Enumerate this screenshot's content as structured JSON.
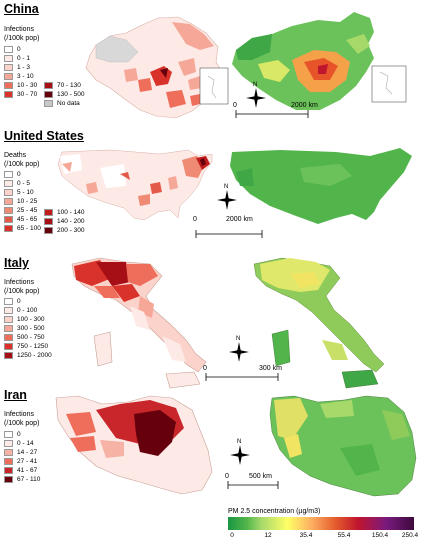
{
  "sections": {
    "china": {
      "title": "China",
      "legend_title": "Infections\n(/100k pop)",
      "legend_left": [
        {
          "label": "0",
          "color": "#ffffff"
        },
        {
          "label": "0 - 1",
          "color": "#fdeae6"
        },
        {
          "label": "1 - 3",
          "color": "#fbd3cb"
        },
        {
          "label": "3 - 10",
          "color": "#f6a898"
        },
        {
          "label": "10 - 30",
          "color": "#ef6e5b"
        },
        {
          "label": "30 - 70",
          "color": "#d8322a"
        }
      ],
      "legend_right": [
        {
          "label": "70 - 130",
          "color": "#a50f15"
        },
        {
          "label": "130 - 500",
          "color": "#67000d"
        },
        {
          "label": "No data",
          "color": "#c8c8c8"
        }
      ],
      "compass": "N",
      "scale_start": "0",
      "scale_end": "2000 km"
    },
    "us": {
      "title": "United States",
      "legend_title": "Deaths\n(/100k pop)",
      "legend_left": [
        {
          "label": "0",
          "color": "#ffffff"
        },
        {
          "label": "0 - 5",
          "color": "#fdeae6"
        },
        {
          "label": "5 - 10",
          "color": "#fbd3cb"
        },
        {
          "label": "10 - 25",
          "color": "#f6a898"
        },
        {
          "label": "25 - 45",
          "color": "#ef8a75"
        },
        {
          "label": "45 - 65",
          "color": "#e45a49"
        },
        {
          "label": "65 - 100",
          "color": "#d8322a"
        }
      ],
      "legend_right": [
        {
          "label": "100 - 140",
          "color": "#c01c1c"
        },
        {
          "label": "140 - 200",
          "color": "#a50f15"
        },
        {
          "label": "200 - 300",
          "color": "#67000d"
        }
      ],
      "compass": "N",
      "scale_start": "0",
      "scale_end": "2000 km"
    },
    "italy": {
      "title": "Italy",
      "legend_title": "Infections\n(/100k pop)",
      "legend_left": [
        {
          "label": "0",
          "color": "#ffffff"
        },
        {
          "label": "0 - 100",
          "color": "#fdeae6"
        },
        {
          "label": "100 - 300",
          "color": "#fbd3cb"
        },
        {
          "label": "300 - 500",
          "color": "#f6a898"
        },
        {
          "label": "500 - 750",
          "color": "#ef6e5b"
        },
        {
          "label": "750 - 1250",
          "color": "#d8322a"
        },
        {
          "label": "1250 - 2000",
          "color": "#a50f15"
        }
      ],
      "compass": "N",
      "scale_start": "0",
      "scale_end": "300 km"
    },
    "iran": {
      "title": "Iran",
      "legend_title": "Infections\n(/100k pop)",
      "legend_left": [
        {
          "label": "0",
          "color": "#ffffff"
        },
        {
          "label": "0 - 14",
          "color": "#fdeae6"
        },
        {
          "label": "14 - 27",
          "color": "#f6b2a4"
        },
        {
          "label": "27 - 41",
          "color": "#ef6e5b"
        },
        {
          "label": "41 - 67",
          "color": "#c8262a"
        },
        {
          "label": "67 - 110",
          "color": "#67000d"
        }
      ],
      "compass": "N",
      "scale_start": "0",
      "scale_end": "500 km"
    }
  },
  "colorbar": {
    "title": "PM 2.5 concentration (µg/m3)",
    "ticks": [
      "0",
      "12",
      "35.4",
      "55.4",
      "150.4",
      "250.4"
    ]
  },
  "colors": {
    "choropleth_high": "#a50f15",
    "choropleth_low": "#fdeae6",
    "pm_low": "#1a9641",
    "pm_high": "#3d0a3d"
  }
}
